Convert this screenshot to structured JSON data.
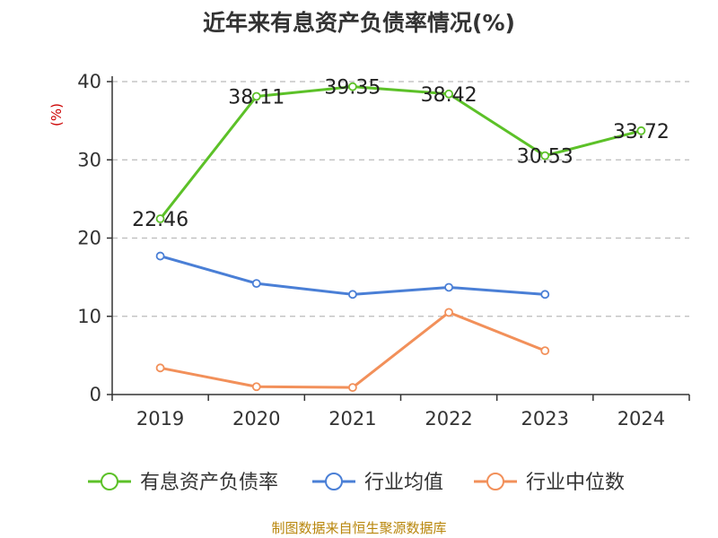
{
  "title": "近年来有息资产负债率情况(%)",
  "source": "制图数据来自恒生聚源数据库",
  "chart_data": {
    "type": "line",
    "title": "近年来有息资产负债率情况(%)",
    "ylabel": "(%)",
    "categories": [
      "2019",
      "2020",
      "2021",
      "2022",
      "2023",
      "2024"
    ],
    "ylim": [
      0,
      40
    ],
    "yticks": [
      0,
      10,
      20,
      30,
      40
    ],
    "grid": true,
    "legend_position": "bottom",
    "series": [
      {
        "name": "有息资产负债率",
        "color": "#5cc128",
        "values": [
          22.46,
          38.11,
          39.35,
          38.42,
          30.53,
          33.72
        ],
        "labels": [
          "22.46",
          "38.11",
          "39.35",
          "38.42",
          "30.53",
          "33.72"
        ]
      },
      {
        "name": "行业均值",
        "color": "#4a7fd6",
        "values": [
          17.7,
          14.2,
          12.8,
          13.7,
          12.8,
          null
        ]
      },
      {
        "name": "行业中位数",
        "color": "#f2905a",
        "values": [
          3.4,
          1.0,
          0.9,
          10.5,
          5.6,
          null
        ]
      }
    ]
  }
}
